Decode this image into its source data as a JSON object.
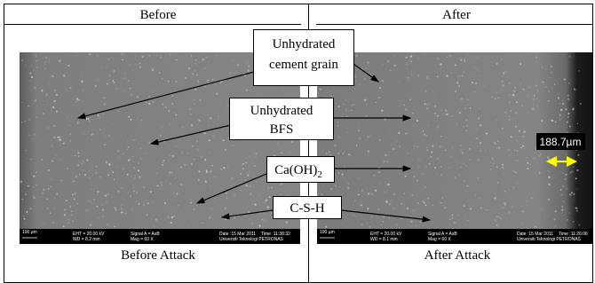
{
  "header": {
    "before": "Before",
    "after": "After"
  },
  "panels": [
    {
      "caption": "Before Attack",
      "info": {
        "scale": "100 µm",
        "eht": "EHT = 20.00 kV",
        "wd": "WD = 8.2 mm",
        "signal": "Signal A = AsB",
        "mag": "Mag = 60 X",
        "date": "Date :15 Mar 2011",
        "time": "Time :11:38:32",
        "org": "Universiti Teknologi PETRONAS"
      }
    },
    {
      "caption": "After Attack",
      "info": {
        "scale": "100 µm",
        "eht": "EHT = 20.00 kV",
        "wd": "WD = 8.1 mm",
        "signal": "Signal A = AsB",
        "mag": "Mag = 60 X",
        "date": "Date :15 Mar 2011",
        "time": "Time :11:26:06",
        "org": "Universiti Teknologi PETRONAS"
      }
    }
  ],
  "labels": {
    "cement_1": "Unhydrated",
    "cement_2": "cement grain",
    "bfs_1": "Unhydrated",
    "bfs_2": "BFS",
    "caoh_main": "Ca(OH)",
    "caoh_sub": "2",
    "csh": "C-S-H"
  },
  "measurement": "188.7µm"
}
